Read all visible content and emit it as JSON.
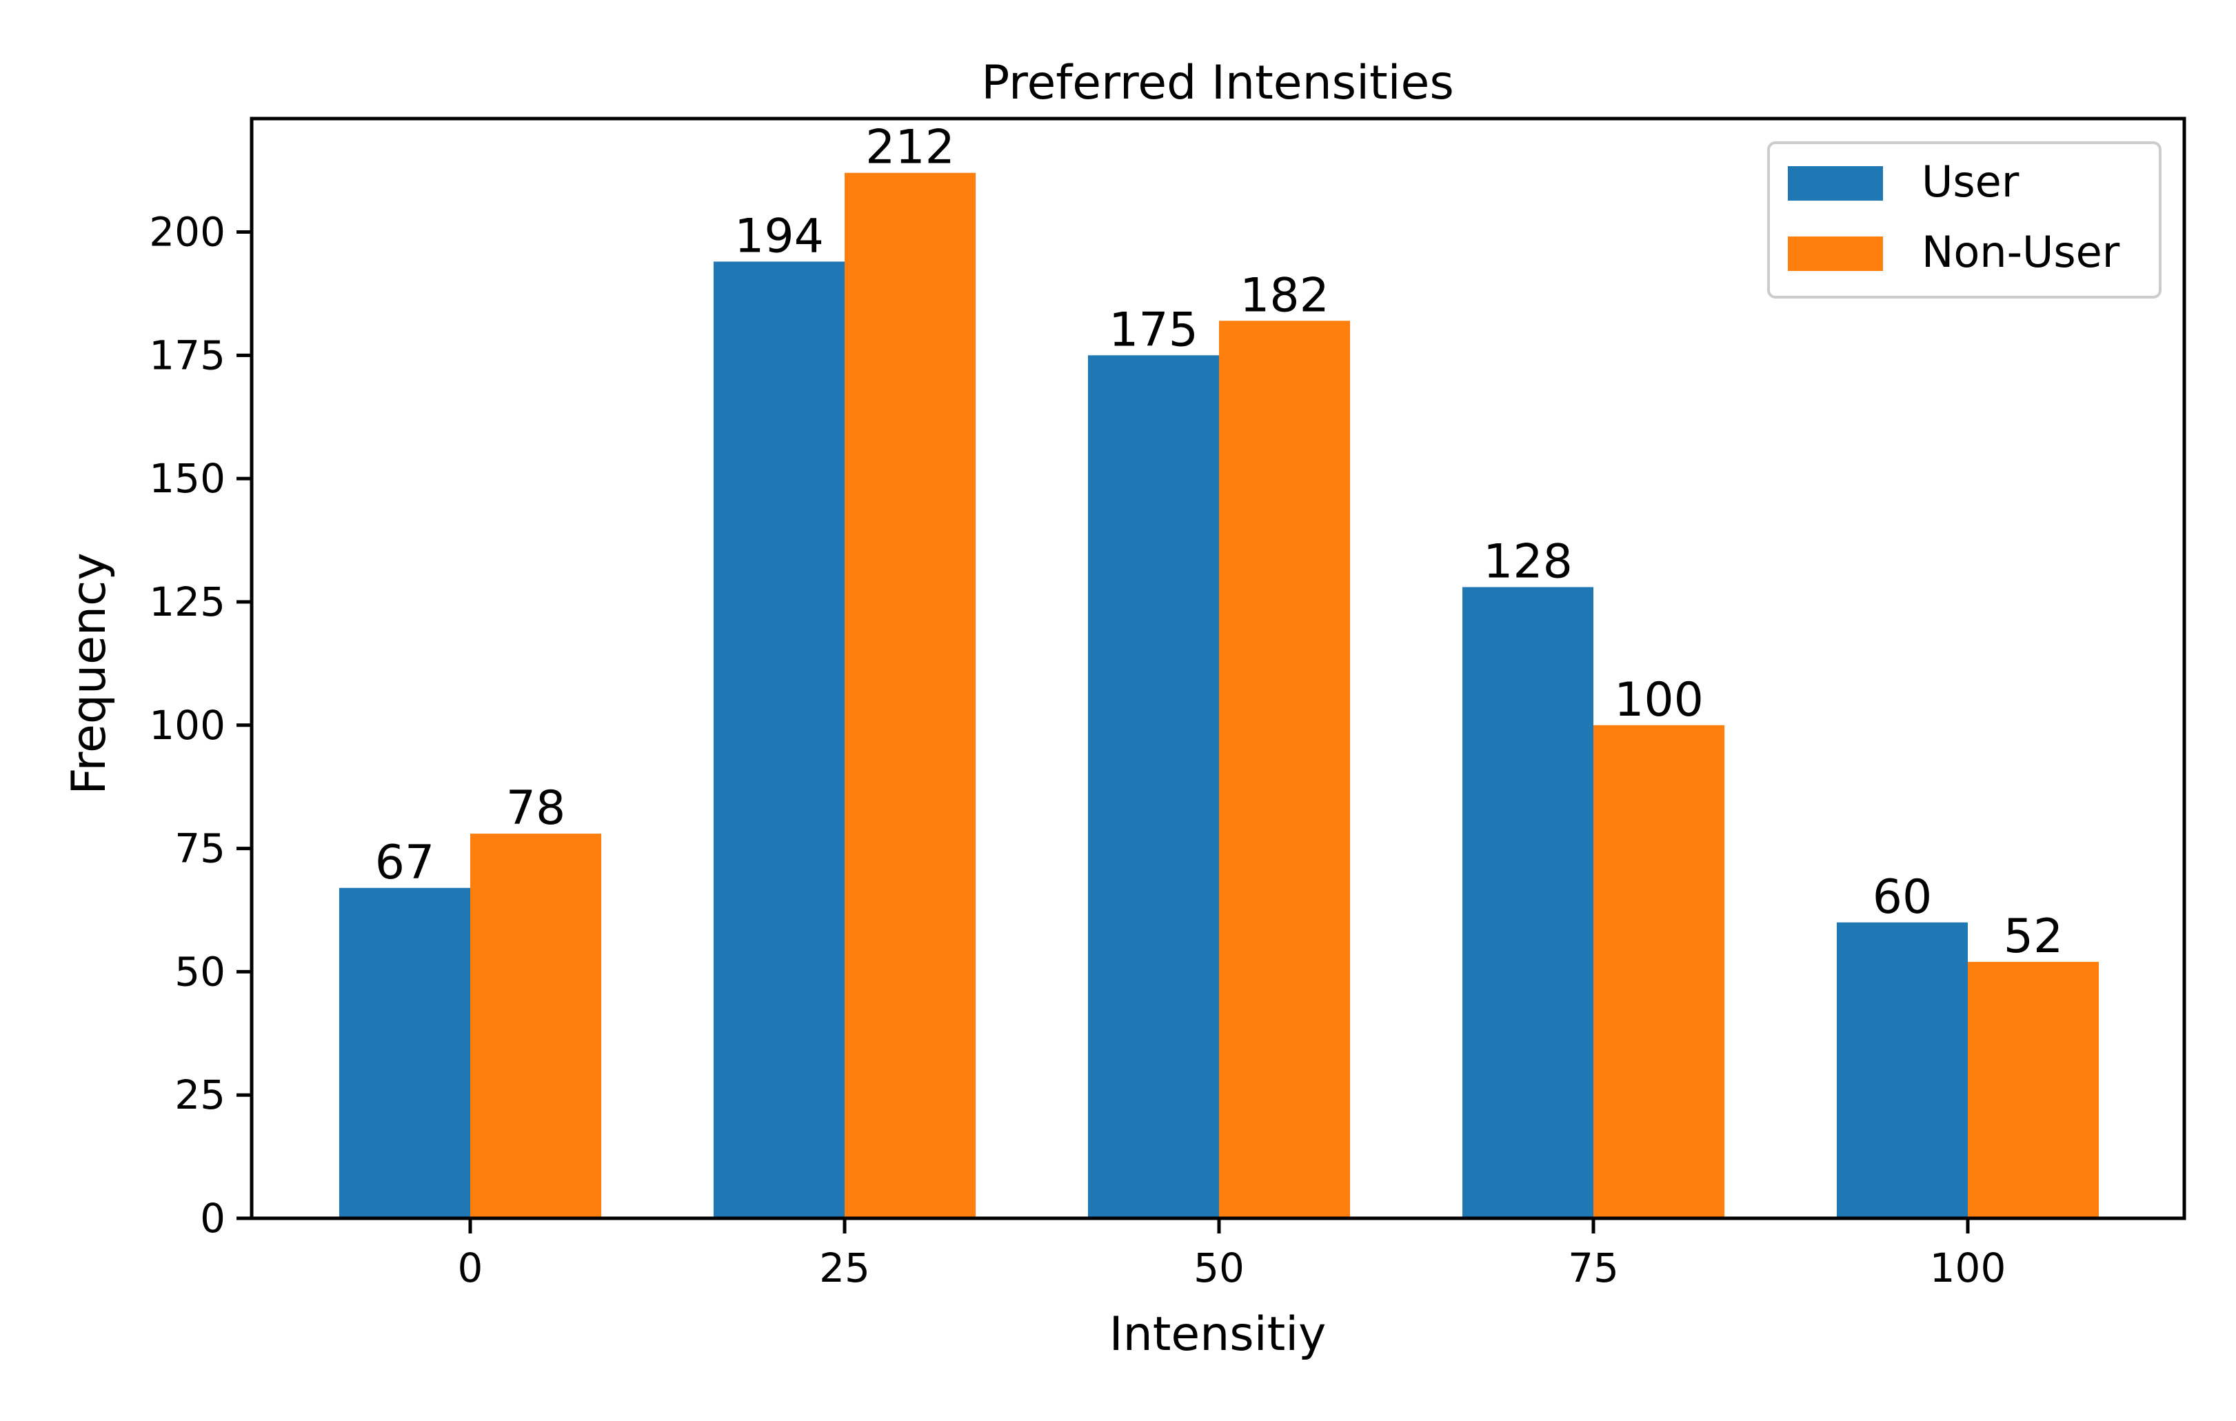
{
  "chart_data": {
    "type": "bar",
    "title": "Preferred Intensities",
    "xlabel": "Intensitiy",
    "ylabel": "Frequency",
    "categories": [
      "0",
      "25",
      "50",
      "75",
      "100"
    ],
    "series": [
      {
        "name": "User",
        "color": "#1f77b4",
        "values": [
          67,
          194,
          175,
          128,
          60
        ]
      },
      {
        "name": "Non-User",
        "color": "#ff7f0e",
        "values": [
          78,
          212,
          182,
          100,
          52
        ]
      }
    ],
    "ylim": [
      0,
      223
    ],
    "yticks": [
      0,
      25,
      50,
      75,
      100,
      125,
      150,
      175,
      200
    ],
    "grid": false,
    "legend_position": "top-right"
  }
}
